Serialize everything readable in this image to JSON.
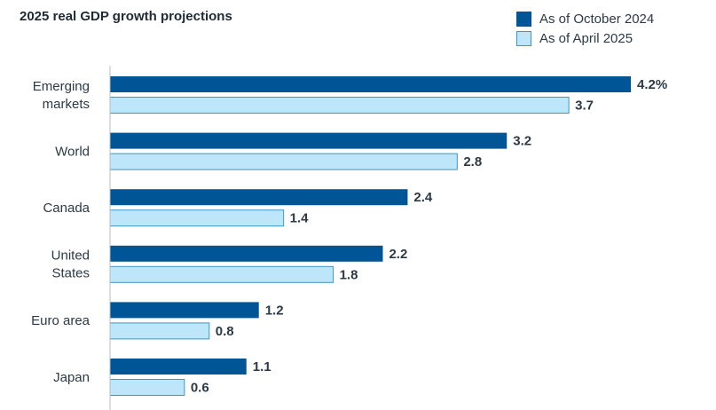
{
  "chart_data": {
    "type": "bar",
    "orientation": "horizontal",
    "title": "2025 real GDP growth projections",
    "categories": [
      [
        "Emerging",
        "markets"
      ],
      [
        "World"
      ],
      [
        "Canada"
      ],
      [
        "United",
        "States"
      ],
      [
        "Euro area"
      ],
      [
        "Japan"
      ]
    ],
    "series": [
      {
        "name": "As of October 2024",
        "color": "#005596",
        "values": [
          4.2,
          3.2,
          2.4,
          2.2,
          1.2,
          1.1
        ],
        "labels": [
          "4.2%",
          "3.2",
          "2.4",
          "2.2",
          "1.2",
          "1.1"
        ]
      },
      {
        "name": "As of April 2025",
        "color": "#bde6fa",
        "border": "#3e96c6",
        "values": [
          3.7,
          2.8,
          1.4,
          1.8,
          0.8,
          0.6
        ],
        "labels": [
          "3.7",
          "2.8",
          "1.4",
          "1.8",
          "0.8",
          "0.6"
        ]
      }
    ],
    "xlim": [
      0,
      4.2
    ],
    "grid": false,
    "legend_position": "top-right"
  }
}
